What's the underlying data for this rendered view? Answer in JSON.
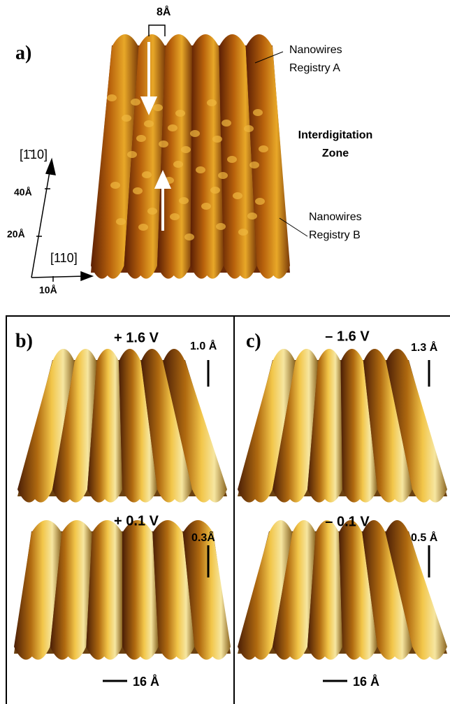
{
  "panel_a": {
    "label": "a)",
    "spacing_label": "8Å",
    "annotations": [
      {
        "lines": [
          "Nanowires",
          "Registry A"
        ]
      },
      {
        "lines": [
          "Interdigitation",
          "Zone"
        ]
      },
      {
        "lines": [
          "Nanowires",
          "Registry B"
        ]
      }
    ],
    "axes": {
      "direction_y": "[1̄10]",
      "ticks_y": [
        "40Å",
        "20Å"
      ],
      "direction_x": "[110]",
      "tick_x": "10Å"
    }
  },
  "panel_b": {
    "label": "b)",
    "images": [
      {
        "bias": "+ 1.6 V",
        "height_scale": "1.0 Å"
      },
      {
        "bias": "+ 0.1 V",
        "height_scale": "0.3Å"
      }
    ],
    "scale_bar": "16 Å"
  },
  "panel_c": {
    "label": "c)",
    "images": [
      {
        "bias": "– 1.6 V",
        "height_scale": "1.3 Å"
      },
      {
        "bias": "– 0.1 V",
        "height_scale": "0.5 Å"
      }
    ],
    "scale_bar": "16 Å"
  }
}
